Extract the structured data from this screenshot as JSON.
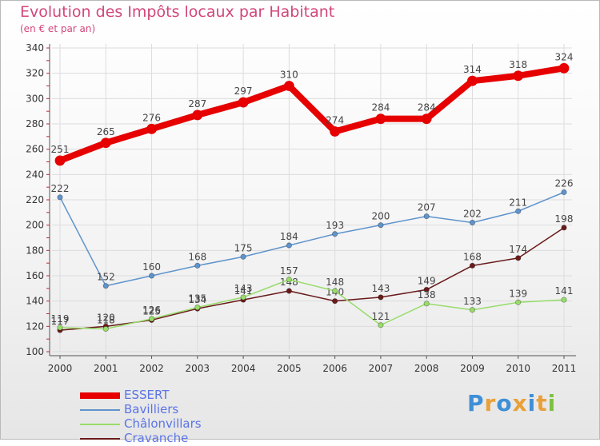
{
  "chart_data": {
    "type": "line",
    "title": "Evolution des Impôts locaux par Habitant",
    "subtitle": "(en € et par an)",
    "x": [
      "2000",
      "2001",
      "2002",
      "2003",
      "2004",
      "2005",
      "2006",
      "2007",
      "2008",
      "2009",
      "2010",
      "2011"
    ],
    "ylim": [
      100,
      340
    ],
    "yticks": [
      100,
      120,
      140,
      160,
      180,
      200,
      220,
      240,
      260,
      280,
      300,
      320,
      340
    ],
    "grid": true,
    "legend_position": "bottom-left",
    "series": [
      {
        "name": "ESSERT",
        "color": "#e60000",
        "values": [
          251,
          265,
          276,
          287,
          297,
          310,
          274,
          284,
          284,
          314,
          318,
          324
        ]
      },
      {
        "name": "Bavilliers",
        "color": "#5f94cc",
        "values": [
          222,
          152,
          160,
          168,
          175,
          184,
          193,
          200,
          207,
          202,
          211,
          226
        ]
      },
      {
        "name": "Châlonvillars",
        "color": "#98dc6a",
        "values": [
          119,
          118,
          126,
          135,
          143,
          157,
          148,
          121,
          138,
          133,
          139,
          141
        ]
      },
      {
        "name": "Cravanche",
        "color": "#6a1a1a",
        "values": [
          117,
          120,
          125,
          134,
          141,
          148,
          140,
          143,
          149,
          168,
          174,
          198
        ]
      }
    ]
  },
  "branding": {
    "logo_letters": [
      {
        "ch": "P",
        "color": "#3f8fd6"
      },
      {
        "ch": "r",
        "color": "#e8a13a"
      },
      {
        "ch": "o",
        "color": "#3f8fd6"
      },
      {
        "ch": "x",
        "color": "#e8a13a"
      },
      {
        "ch": "i",
        "color": "#3f8fd6"
      },
      {
        "ch": "t",
        "color": "#e8a13a"
      },
      {
        "ch": "i",
        "color": "#7cc242"
      }
    ]
  }
}
